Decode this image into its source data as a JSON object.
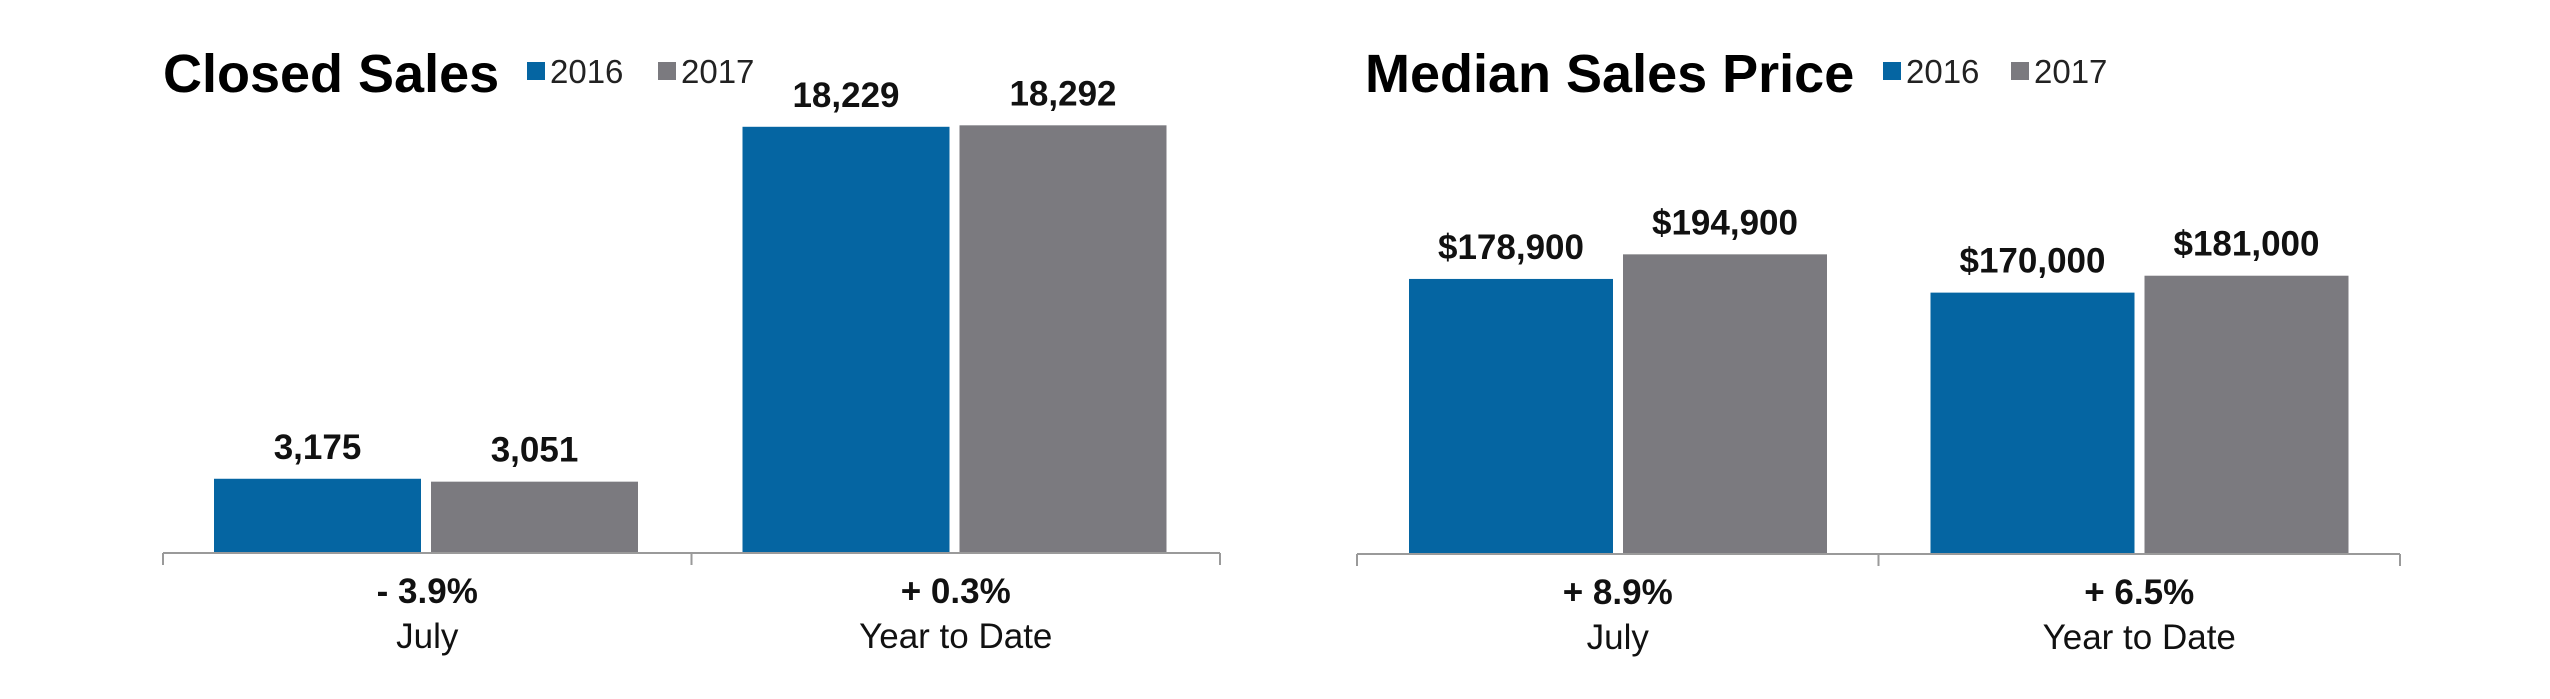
{
  "chart_data": [
    {
      "type": "bar",
      "title": "Closed Sales",
      "legend_position": "top",
      "series": [
        {
          "name": "2016",
          "color": "#0565a2",
          "values": [
            3175,
            18229
          ],
          "labels": [
            "3,175",
            "18,229"
          ]
        },
        {
          "name": "2017",
          "color": "#7b7a7f",
          "values": [
            3051,
            18292
          ],
          "labels": [
            "3,051",
            "18,292"
          ]
        }
      ],
      "categories": [
        "July",
        "Year to Date"
      ],
      "changes": [
        "- 3.9%",
        "+ 0.3%"
      ],
      "ylim": [
        0,
        21000
      ],
      "grid": false
    },
    {
      "type": "bar",
      "title": "Median Sales Price",
      "legend_position": "top",
      "series": [
        {
          "name": "2016",
          "color": "#0565a2",
          "values": [
            178900,
            170000
          ],
          "labels": [
            "$178,900",
            "$170,000"
          ]
        },
        {
          "name": "2017",
          "color": "#7b7a7f",
          "values": [
            194900,
            181000
          ],
          "labels": [
            "$194,900",
            "$181,000"
          ]
        }
      ],
      "categories": [
        "July",
        "Year to Date"
      ],
      "changes": [
        "+ 8.9%",
        "+ 6.5%"
      ],
      "ylim": [
        0,
        320000
      ],
      "grid": false
    }
  ]
}
